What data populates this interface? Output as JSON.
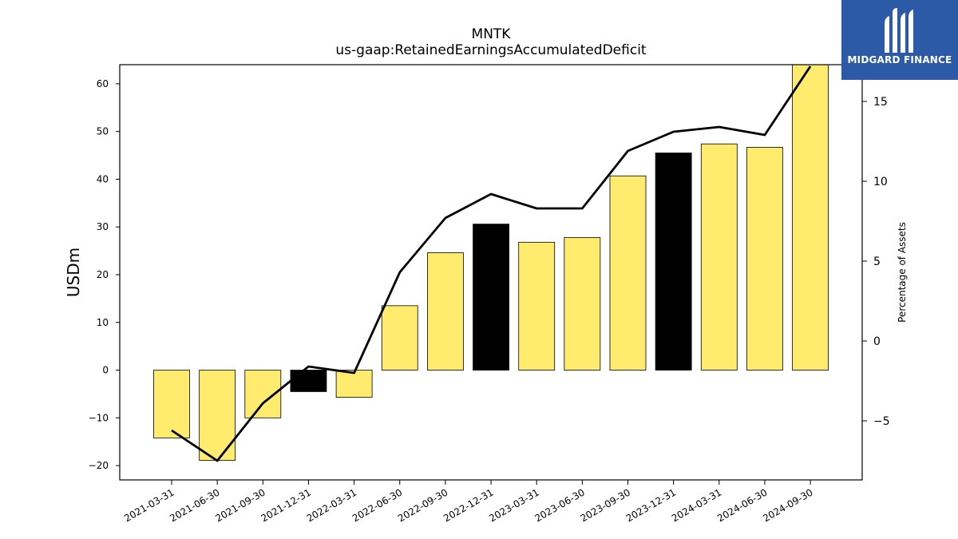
{
  "chart_data": {
    "type": "bar",
    "title": "MNTK",
    "subtitle": "us-gaap:RetainedEarningsAccumulatedDeficit",
    "ylabel": "USDm",
    "ylabel_right": "Percentage of Assets",
    "categories": [
      "2021-03-31",
      "2021-06-30",
      "2021-09-30",
      "2021-12-31",
      "2022-03-31",
      "2022-06-30",
      "2022-09-30",
      "2022-12-31",
      "2023-03-31",
      "2023-06-30",
      "2023-09-30",
      "2023-12-31",
      "2024-03-31",
      "2024-06-30",
      "2024-09-30"
    ],
    "series": [
      {
        "type": "bar",
        "axis": "left",
        "values": [
          -14.2,
          -18.9,
          -10.0,
          -4.5,
          -5.7,
          13.5,
          24.6,
          30.6,
          26.8,
          27.8,
          40.7,
          45.5,
          47.4,
          46.7,
          64.0
        ],
        "colors": [
          "#ffeb6e",
          "#ffeb6e",
          "#ffeb6e",
          "#000000",
          "#ffeb6e",
          "#ffeb6e",
          "#ffeb6e",
          "#000000",
          "#ffeb6e",
          "#ffeb6e",
          "#ffeb6e",
          "#000000",
          "#ffeb6e",
          "#ffeb6e",
          "#ffeb6e"
        ]
      },
      {
        "type": "line",
        "axis": "right",
        "color": "#000000",
        "values": [
          -5.6,
          -7.5,
          -3.9,
          -1.6,
          -2.0,
          4.3,
          7.7,
          9.2,
          8.3,
          8.3,
          11.9,
          13.1,
          13.4,
          12.9,
          17.2
        ]
      }
    ],
    "ylim": [
      -23,
      64
    ],
    "yticks": [
      -20,
      -10,
      0,
      10,
      20,
      30,
      40,
      50,
      60
    ],
    "ytick_labels": [
      "−20",
      "−10",
      "0",
      "10",
      "20",
      "30",
      "40",
      "50",
      "60"
    ],
    "ylim_right": [
      -8.7,
      17.3
    ],
    "yticks_right": [
      -5,
      0,
      5,
      10,
      15
    ],
    "ytick_labels_right": [
      "−5",
      "0",
      "5",
      "10",
      "15"
    ],
    "grid": false,
    "legend": "none"
  },
  "logo": {
    "text": "MIDGARD FINANCE",
    "background": "#2d5aa7"
  }
}
